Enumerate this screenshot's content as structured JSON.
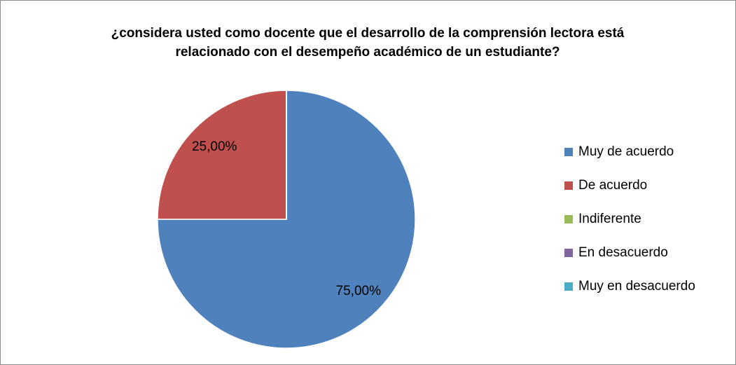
{
  "chart_data": {
    "type": "pie",
    "title": "¿considera usted como docente que el desarrollo de la comprensión lectora está relacionado con el desempeño académico de un estudiante?",
    "categories": [
      "Muy de acuerdo",
      "De acuerdo",
      "Indiferente",
      "En desacuerdo",
      "Muy en desacuerdo"
    ],
    "values": [
      75,
      25,
      0,
      0,
      0
    ],
    "value_labels": [
      "75,00%",
      "25,00%",
      null,
      null,
      null
    ],
    "colors": [
      "#4f81bd",
      "#c0504d",
      "#9bbb59",
      "#8064a2",
      "#4bacc6"
    ],
    "legend": "right"
  }
}
